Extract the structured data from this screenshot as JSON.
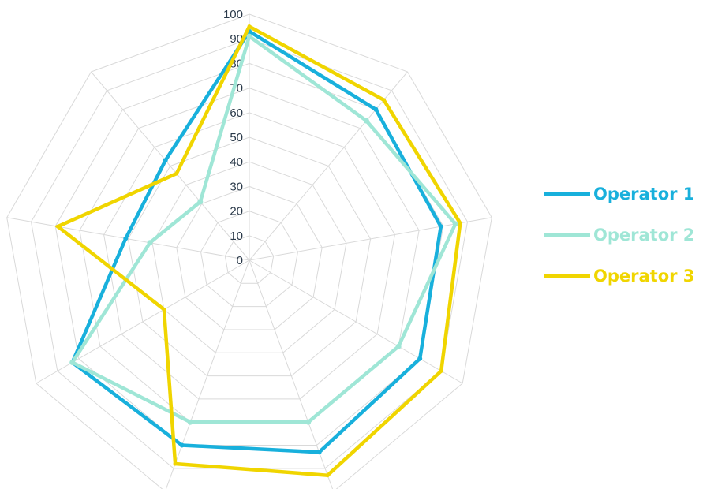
{
  "chart_data": {
    "type": "radar",
    "axes_count": 9,
    "rlim": [
      0,
      100
    ],
    "rticks": [
      "0",
      "10",
      "20",
      "30",
      "40",
      "50",
      "60",
      "70",
      "80",
      "90",
      "100"
    ],
    "grid": true,
    "legend_position": "right",
    "series": [
      {
        "name": "Operator 1",
        "color": "#18b0dc",
        "values": [
          93,
          80,
          79,
          80,
          83,
          80,
          83,
          51,
          53
        ]
      },
      {
        "name": "Operator 2",
        "color": "#9fe6d6",
        "values": [
          91,
          74,
          85,
          70,
          70,
          70,
          83,
          41,
          31
        ]
      },
      {
        "name": "Operator 3",
        "color": "#f0d500",
        "values": [
          95,
          85,
          87,
          90,
          93,
          88,
          40,
          79,
          46
        ]
      }
    ]
  }
}
